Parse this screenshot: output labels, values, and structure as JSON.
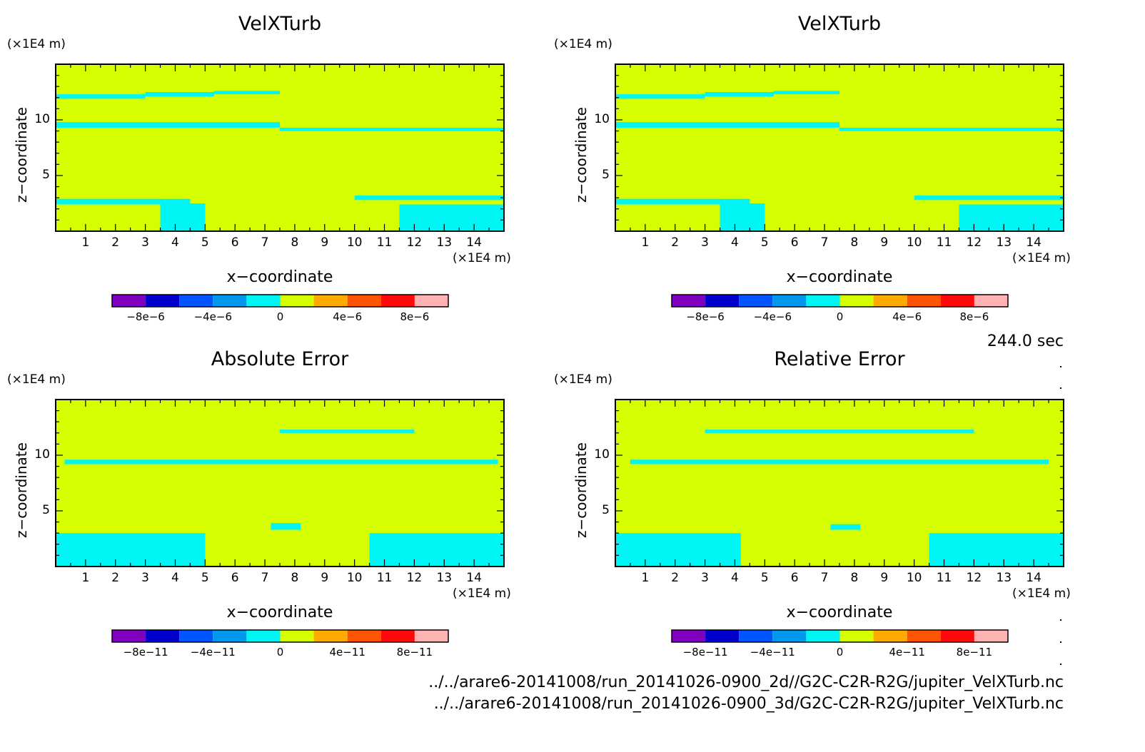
{
  "figure": {
    "time_label": "244.0 sec",
    "files": [
      "../../arare6-20141008/run_20141026-0900_2d//G2C-C2R-R2G/jupiter_VelXTurb.nc",
      "../../arare6-20141008/run_20141026-0900_3d/G2C-C2R-R2G/jupiter_VelXTurb.nc"
    ]
  },
  "colors": {
    "field": "#d5ff00",
    "zero_band": "#00f5f5",
    "colorbar": [
      "#7f00bf",
      "#0000cc",
      "#0055ff",
      "#0099ee",
      "#00f5f5",
      "#d5ff00",
      "#ffaa00",
      "#ff5500",
      "#ff0a0a",
      "#ffb3b3"
    ]
  },
  "chart_data": [
    {
      "type": "heatmap",
      "title": "VelXTurb",
      "xlabel": "x−coordinate",
      "ylabel": "z−coordinate",
      "x_unit": "(×1E4 m)",
      "y_unit": "(×1E4 m)",
      "xlim": [
        0,
        15
      ],
      "ylim": [
        0,
        15
      ],
      "xticks": [
        "1",
        "2",
        "3",
        "4",
        "5",
        "6",
        "7",
        "8",
        "9",
        "10",
        "11",
        "12",
        "13",
        "14"
      ],
      "yticks": [
        "5",
        "10"
      ],
      "colorbar_ticks": [
        "−8e−6",
        "−4e−6",
        "0",
        "4e−6",
        "8e−6"
      ],
      "colorbar_levels": [
        -1e-05,
        -8e-06,
        -6e-06,
        -4e-06,
        -2e-06,
        0,
        2e-06,
        4e-06,
        6e-06,
        8e-06,
        1e-05
      ],
      "dominant_level_range": [
        0,
        2e-06
      ],
      "small_negative_regions": [
        {
          "x": [
            0,
            3.0
          ],
          "z": [
            11.9,
            12.3
          ]
        },
        {
          "x": [
            3.0,
            5.3
          ],
          "z": [
            12.1,
            12.5
          ]
        },
        {
          "x": [
            5.3,
            7.5
          ],
          "z": [
            12.3,
            12.6
          ]
        },
        {
          "x": [
            0,
            7.5
          ],
          "z": [
            9.3,
            9.8
          ]
        },
        {
          "x": [
            7.5,
            15
          ],
          "z": [
            9.0,
            9.3
          ]
        },
        {
          "x": [
            0,
            4.5
          ],
          "z": [
            2.4,
            2.9
          ]
        },
        {
          "x": [
            10,
            15
          ],
          "z": [
            2.8,
            3.2
          ]
        },
        {
          "x": [
            3.5,
            5.0
          ],
          "z": [
            0,
            2.5
          ]
        },
        {
          "x": [
            11.5,
            15
          ],
          "z": [
            0,
            2.4
          ]
        }
      ]
    },
    {
      "type": "heatmap",
      "title": "VelXTurb",
      "xlabel": "x−coordinate",
      "ylabel": "z−coordinate",
      "x_unit": "(×1E4 m)",
      "y_unit": "(×1E4 m)",
      "xlim": [
        0,
        15
      ],
      "ylim": [
        0,
        15
      ],
      "xticks": [
        "1",
        "2",
        "3",
        "4",
        "5",
        "6",
        "7",
        "8",
        "9",
        "10",
        "11",
        "12",
        "13",
        "14"
      ],
      "yticks": [
        "5",
        "10"
      ],
      "colorbar_ticks": [
        "−8e−6",
        "−4e−6",
        "0",
        "4e−6",
        "8e−6"
      ],
      "colorbar_levels": [
        -1e-05,
        -8e-06,
        -6e-06,
        -4e-06,
        -2e-06,
        0,
        2e-06,
        4e-06,
        6e-06,
        8e-06,
        1e-05
      ],
      "dominant_level_range": [
        0,
        2e-06
      ],
      "small_negative_regions": [
        {
          "x": [
            0,
            3.0
          ],
          "z": [
            11.9,
            12.3
          ]
        },
        {
          "x": [
            3.0,
            5.3
          ],
          "z": [
            12.1,
            12.5
          ]
        },
        {
          "x": [
            5.3,
            7.5
          ],
          "z": [
            12.3,
            12.6
          ]
        },
        {
          "x": [
            0,
            7.5
          ],
          "z": [
            9.3,
            9.8
          ]
        },
        {
          "x": [
            7.5,
            15
          ],
          "z": [
            9.0,
            9.3
          ]
        },
        {
          "x": [
            0,
            4.5
          ],
          "z": [
            2.4,
            2.9
          ]
        },
        {
          "x": [
            10,
            15
          ],
          "z": [
            2.8,
            3.2
          ]
        },
        {
          "x": [
            3.5,
            5.0
          ],
          "z": [
            0,
            2.5
          ]
        },
        {
          "x": [
            11.5,
            15
          ],
          "z": [
            0,
            2.4
          ]
        }
      ]
    },
    {
      "type": "heatmap",
      "title": "Absolute Error",
      "xlabel": "x−coordinate",
      "ylabel": "z−coordinate",
      "x_unit": "(×1E4 m)",
      "y_unit": "(×1E4 m)",
      "xlim": [
        0,
        15
      ],
      "ylim": [
        0,
        15
      ],
      "xticks": [
        "1",
        "2",
        "3",
        "4",
        "5",
        "6",
        "7",
        "8",
        "9",
        "10",
        "11",
        "12",
        "13",
        "14"
      ],
      "yticks": [
        "5",
        "10"
      ],
      "colorbar_ticks": [
        "−8e−11",
        "−4e−11",
        "0",
        "4e−11",
        "8e−11"
      ],
      "colorbar_levels": [
        -1e-10,
        -8e-11,
        -6e-11,
        -4e-11,
        -2e-11,
        0,
        2e-11,
        4e-11,
        6e-11,
        8e-11,
        1e-10
      ],
      "dominant_level_range": [
        0,
        2e-11
      ],
      "small_negative_regions": [
        {
          "x": [
            7.5,
            12
          ],
          "z": [
            12.0,
            12.3
          ]
        },
        {
          "x": [
            0.3,
            14.8
          ],
          "z": [
            9.2,
            9.6
          ]
        },
        {
          "x": [
            0,
            5
          ],
          "z": [
            0,
            3.0
          ]
        },
        {
          "x": [
            10.5,
            15
          ],
          "z": [
            0,
            3.0
          ]
        },
        {
          "x": [
            7.2,
            8.2
          ],
          "z": [
            3.3,
            3.9
          ]
        }
      ]
    },
    {
      "type": "heatmap",
      "title": "Relative Error",
      "xlabel": "x−coordinate",
      "ylabel": "z−coordinate",
      "x_unit": "(×1E4 m)",
      "y_unit": "(×1E4 m)",
      "xlim": [
        0,
        15
      ],
      "ylim": [
        0,
        15
      ],
      "xticks": [
        "1",
        "2",
        "3",
        "4",
        "5",
        "6",
        "7",
        "8",
        "9",
        "10",
        "11",
        "12",
        "13",
        "14"
      ],
      "yticks": [
        "5",
        "10"
      ],
      "colorbar_ticks": [
        "−8e−11",
        "−4e−11",
        "0",
        "4e−11",
        "8e−11"
      ],
      "colorbar_levels": [
        -1e-10,
        -8e-11,
        -6e-11,
        -4e-11,
        -2e-11,
        0,
        2e-11,
        4e-11,
        6e-11,
        8e-11,
        1e-10
      ],
      "dominant_level_range": [
        0,
        2e-11
      ],
      "small_negative_regions": [
        {
          "x": [
            3,
            12
          ],
          "z": [
            12.0,
            12.3
          ]
        },
        {
          "x": [
            0.5,
            14.5
          ],
          "z": [
            9.2,
            9.6
          ]
        },
        {
          "x": [
            0,
            4.2
          ],
          "z": [
            0,
            3.0
          ]
        },
        {
          "x": [
            10.5,
            15
          ],
          "z": [
            0,
            3.0
          ]
        },
        {
          "x": [
            7.2,
            8.2
          ],
          "z": [
            3.3,
            3.8
          ]
        }
      ]
    }
  ]
}
